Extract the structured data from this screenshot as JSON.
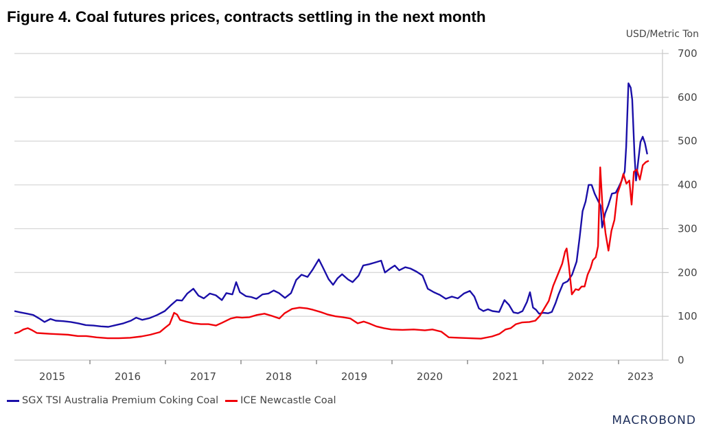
{
  "chart_data": {
    "type": "line",
    "title": "Figure 4. Coal futures prices, contracts settling in the next month",
    "ylabel": "USD/Metric Ton",
    "xlabel": "",
    "ylim": [
      0,
      700
    ],
    "xlim": [
      2015.0,
      2023.55
    ],
    "yticks": [
      "0",
      "100",
      "200",
      "300",
      "400",
      "500",
      "600",
      "700"
    ],
    "xticks": [
      "2015",
      "2016",
      "2017",
      "2018",
      "2019",
      "2020",
      "2021",
      "2022",
      "2023"
    ],
    "grid": true,
    "legend_position": "bottom-left",
    "series": [
      {
        "name": "SGX TSI Australia Premium Coking Coal",
        "color": "#1a0fa8",
        "points": [
          [
            2015.0,
            112
          ],
          [
            2015.08,
            109
          ],
          [
            2015.17,
            106
          ],
          [
            2015.25,
            103
          ],
          [
            2015.33,
            95
          ],
          [
            2015.4,
            87
          ],
          [
            2015.48,
            94
          ],
          [
            2015.55,
            90
          ],
          [
            2015.65,
            89
          ],
          [
            2015.75,
            87
          ],
          [
            2015.85,
            84
          ],
          [
            2015.95,
            80
          ],
          [
            2016.05,
            79
          ],
          [
            2016.15,
            77
          ],
          [
            2016.25,
            76
          ],
          [
            2016.35,
            80
          ],
          [
            2016.45,
            84
          ],
          [
            2016.55,
            90
          ],
          [
            2016.62,
            97
          ],
          [
            2016.7,
            92
          ],
          [
            2016.8,
            96
          ],
          [
            2016.9,
            103
          ],
          [
            2017.0,
            112
          ],
          [
            2017.08,
            125
          ],
          [
            2017.16,
            137
          ],
          [
            2017.23,
            136
          ],
          [
            2017.3,
            152
          ],
          [
            2017.38,
            163
          ],
          [
            2017.45,
            147
          ],
          [
            2017.52,
            141
          ],
          [
            2017.6,
            152
          ],
          [
            2017.68,
            148
          ],
          [
            2017.76,
            137
          ],
          [
            2017.82,
            153
          ],
          [
            2017.9,
            150
          ],
          [
            2017.95,
            178
          ],
          [
            2018.0,
            155
          ],
          [
            2018.08,
            146
          ],
          [
            2018.15,
            144
          ],
          [
            2018.22,
            140
          ],
          [
            2018.3,
            150
          ],
          [
            2018.38,
            152
          ],
          [
            2018.45,
            159
          ],
          [
            2018.52,
            153
          ],
          [
            2018.6,
            142
          ],
          [
            2018.68,
            153
          ],
          [
            2018.75,
            183
          ],
          [
            2018.82,
            195
          ],
          [
            2018.9,
            190
          ],
          [
            2018.97,
            207
          ],
          [
            2019.05,
            230
          ],
          [
            2019.1,
            213
          ],
          [
            2019.18,
            185
          ],
          [
            2019.24,
            172
          ],
          [
            2019.3,
            187
          ],
          [
            2019.36,
            196
          ],
          [
            2019.44,
            184
          ],
          [
            2019.5,
            178
          ],
          [
            2019.58,
            193
          ],
          [
            2019.64,
            216
          ],
          [
            2019.72,
            219
          ],
          [
            2019.8,
            223
          ],
          [
            2019.88,
            227
          ],
          [
            2019.93,
            200
          ],
          [
            2020.0,
            209
          ],
          [
            2020.06,
            216
          ],
          [
            2020.12,
            205
          ],
          [
            2020.2,
            212
          ],
          [
            2020.27,
            209
          ],
          [
            2020.35,
            202
          ],
          [
            2020.43,
            193
          ],
          [
            2020.5,
            163
          ],
          [
            2020.58,
            155
          ],
          [
            2020.66,
            149
          ],
          [
            2020.74,
            140
          ],
          [
            2020.82,
            145
          ],
          [
            2020.9,
            141
          ],
          [
            2020.98,
            152
          ],
          [
            2021.06,
            158
          ],
          [
            2021.12,
            145
          ],
          [
            2021.18,
            118
          ],
          [
            2021.24,
            112
          ],
          [
            2021.3,
            116
          ],
          [
            2021.36,
            112
          ],
          [
            2021.45,
            110
          ],
          [
            2021.52,
            137
          ],
          [
            2021.58,
            126
          ],
          [
            2021.64,
            109
          ],
          [
            2021.7,
            107
          ],
          [
            2021.76,
            112
          ],
          [
            2021.82,
            133
          ],
          [
            2021.86,
            155
          ],
          [
            2021.9,
            120
          ],
          [
            2021.94,
            115
          ],
          [
            2021.98,
            106
          ],
          [
            2022.04,
            108
          ],
          [
            2022.1,
            107
          ],
          [
            2022.15,
            110
          ],
          [
            2022.2,
            130
          ],
          [
            2022.24,
            150
          ],
          [
            2022.3,
            175
          ],
          [
            2022.36,
            180
          ],
          [
            2022.42,
            195
          ],
          [
            2022.48,
            225
          ],
          [
            2022.52,
            280
          ],
          [
            2022.56,
            340
          ],
          [
            2022.6,
            362
          ],
          [
            2022.64,
            400
          ],
          [
            2022.68,
            400
          ],
          [
            2022.72,
            380
          ],
          [
            2022.76,
            366
          ],
          [
            2022.8,
            352
          ],
          [
            2022.82,
            303
          ],
          [
            2022.86,
            335
          ],
          [
            2022.9,
            353
          ],
          [
            2022.95,
            380
          ],
          [
            2023.0,
            382
          ],
          [
            2023.04,
            395
          ],
          [
            2023.08,
            410
          ],
          [
            2023.12,
            431
          ],
          [
            2023.14,
            487
          ],
          [
            2023.17,
            632
          ],
          [
            2023.2,
            622
          ],
          [
            2023.22,
            595
          ],
          [
            2023.25,
            470
          ],
          [
            2023.27,
            410
          ],
          [
            2023.3,
            455
          ],
          [
            2023.33,
            498
          ],
          [
            2023.36,
            510
          ],
          [
            2023.39,
            495
          ],
          [
            2023.42,
            470
          ]
        ]
      },
      {
        "name": "ICE Newcastle Coal",
        "color": "#f00008",
        "points": [
          [
            2015.0,
            61
          ],
          [
            2015.06,
            64
          ],
          [
            2015.12,
            70
          ],
          [
            2015.18,
            73
          ],
          [
            2015.24,
            68
          ],
          [
            2015.3,
            62
          ],
          [
            2015.38,
            61
          ],
          [
            2015.48,
            60
          ],
          [
            2015.6,
            59
          ],
          [
            2015.72,
            58
          ],
          [
            2015.85,
            55
          ],
          [
            2015.96,
            55
          ],
          [
            2016.1,
            52
          ],
          [
            2016.25,
            50
          ],
          [
            2016.4,
            50
          ],
          [
            2016.55,
            51
          ],
          [
            2016.7,
            54
          ],
          [
            2016.82,
            58
          ],
          [
            2016.95,
            64
          ],
          [
            2017.02,
            74
          ],
          [
            2017.08,
            82
          ],
          [
            2017.14,
            108
          ],
          [
            2017.18,
            104
          ],
          [
            2017.22,
            92
          ],
          [
            2017.3,
            88
          ],
          [
            2017.4,
            84
          ],
          [
            2017.5,
            82
          ],
          [
            2017.6,
            82
          ],
          [
            2017.7,
            79
          ],
          [
            2017.78,
            85
          ],
          [
            2017.9,
            95
          ],
          [
            2017.98,
            98
          ],
          [
            2018.05,
            97
          ],
          [
            2018.15,
            98
          ],
          [
            2018.25,
            103
          ],
          [
            2018.35,
            106
          ],
          [
            2018.45,
            101
          ],
          [
            2018.55,
            95
          ],
          [
            2018.62,
            107
          ],
          [
            2018.72,
            117
          ],
          [
            2018.82,
            120
          ],
          [
            2018.92,
            118
          ],
          [
            2019.0,
            115
          ],
          [
            2019.1,
            110
          ],
          [
            2019.2,
            104
          ],
          [
            2019.3,
            100
          ],
          [
            2019.4,
            98
          ],
          [
            2019.5,
            95
          ],
          [
            2019.6,
            84
          ],
          [
            2019.68,
            88
          ],
          [
            2019.75,
            84
          ],
          [
            2019.85,
            77
          ],
          [
            2019.95,
            73
          ],
          [
            2020.05,
            70
          ],
          [
            2020.2,
            69
          ],
          [
            2020.35,
            70
          ],
          [
            2020.5,
            68
          ],
          [
            2020.6,
            70
          ],
          [
            2020.72,
            65
          ],
          [
            2020.82,
            52
          ],
          [
            2020.95,
            51
          ],
          [
            2021.1,
            50
          ],
          [
            2021.25,
            49
          ],
          [
            2021.4,
            54
          ],
          [
            2021.5,
            60
          ],
          [
            2021.58,
            70
          ],
          [
            2021.65,
            73
          ],
          [
            2021.72,
            82
          ],
          [
            2021.8,
            86
          ],
          [
            2021.9,
            87
          ],
          [
            2021.98,
            90
          ],
          [
            2022.04,
            101
          ],
          [
            2022.1,
            118
          ],
          [
            2022.16,
            135
          ],
          [
            2022.22,
            170
          ],
          [
            2022.28,
            195
          ],
          [
            2022.34,
            220
          ],
          [
            2022.38,
            248
          ],
          [
            2022.4,
            255
          ],
          [
            2022.43,
            215
          ],
          [
            2022.47,
            150
          ],
          [
            2022.52,
            162
          ],
          [
            2022.56,
            160
          ],
          [
            2022.6,
            168
          ],
          [
            2022.64,
            168
          ],
          [
            2022.68,
            195
          ],
          [
            2022.72,
            210
          ],
          [
            2022.75,
            228
          ],
          [
            2022.79,
            235
          ],
          [
            2022.82,
            260
          ],
          [
            2022.85,
            440
          ],
          [
            2022.88,
            350
          ],
          [
            2022.92,
            290
          ],
          [
            2022.96,
            250
          ],
          [
            2023.0,
            295
          ],
          [
            2023.04,
            320
          ],
          [
            2023.08,
            380
          ],
          [
            2023.12,
            400
          ],
          [
            2023.16,
            425
          ],
          [
            2023.2,
            403
          ],
          [
            2023.24,
            410
          ],
          [
            2023.27,
            355
          ],
          [
            2023.3,
            430
          ],
          [
            2023.34,
            435
          ],
          [
            2023.38,
            412
          ],
          [
            2023.42,
            445
          ],
          [
            2023.46,
            452
          ],
          [
            2023.5,
            455
          ]
        ]
      }
    ]
  },
  "branding": {
    "logo_text": "MACROBOND"
  }
}
